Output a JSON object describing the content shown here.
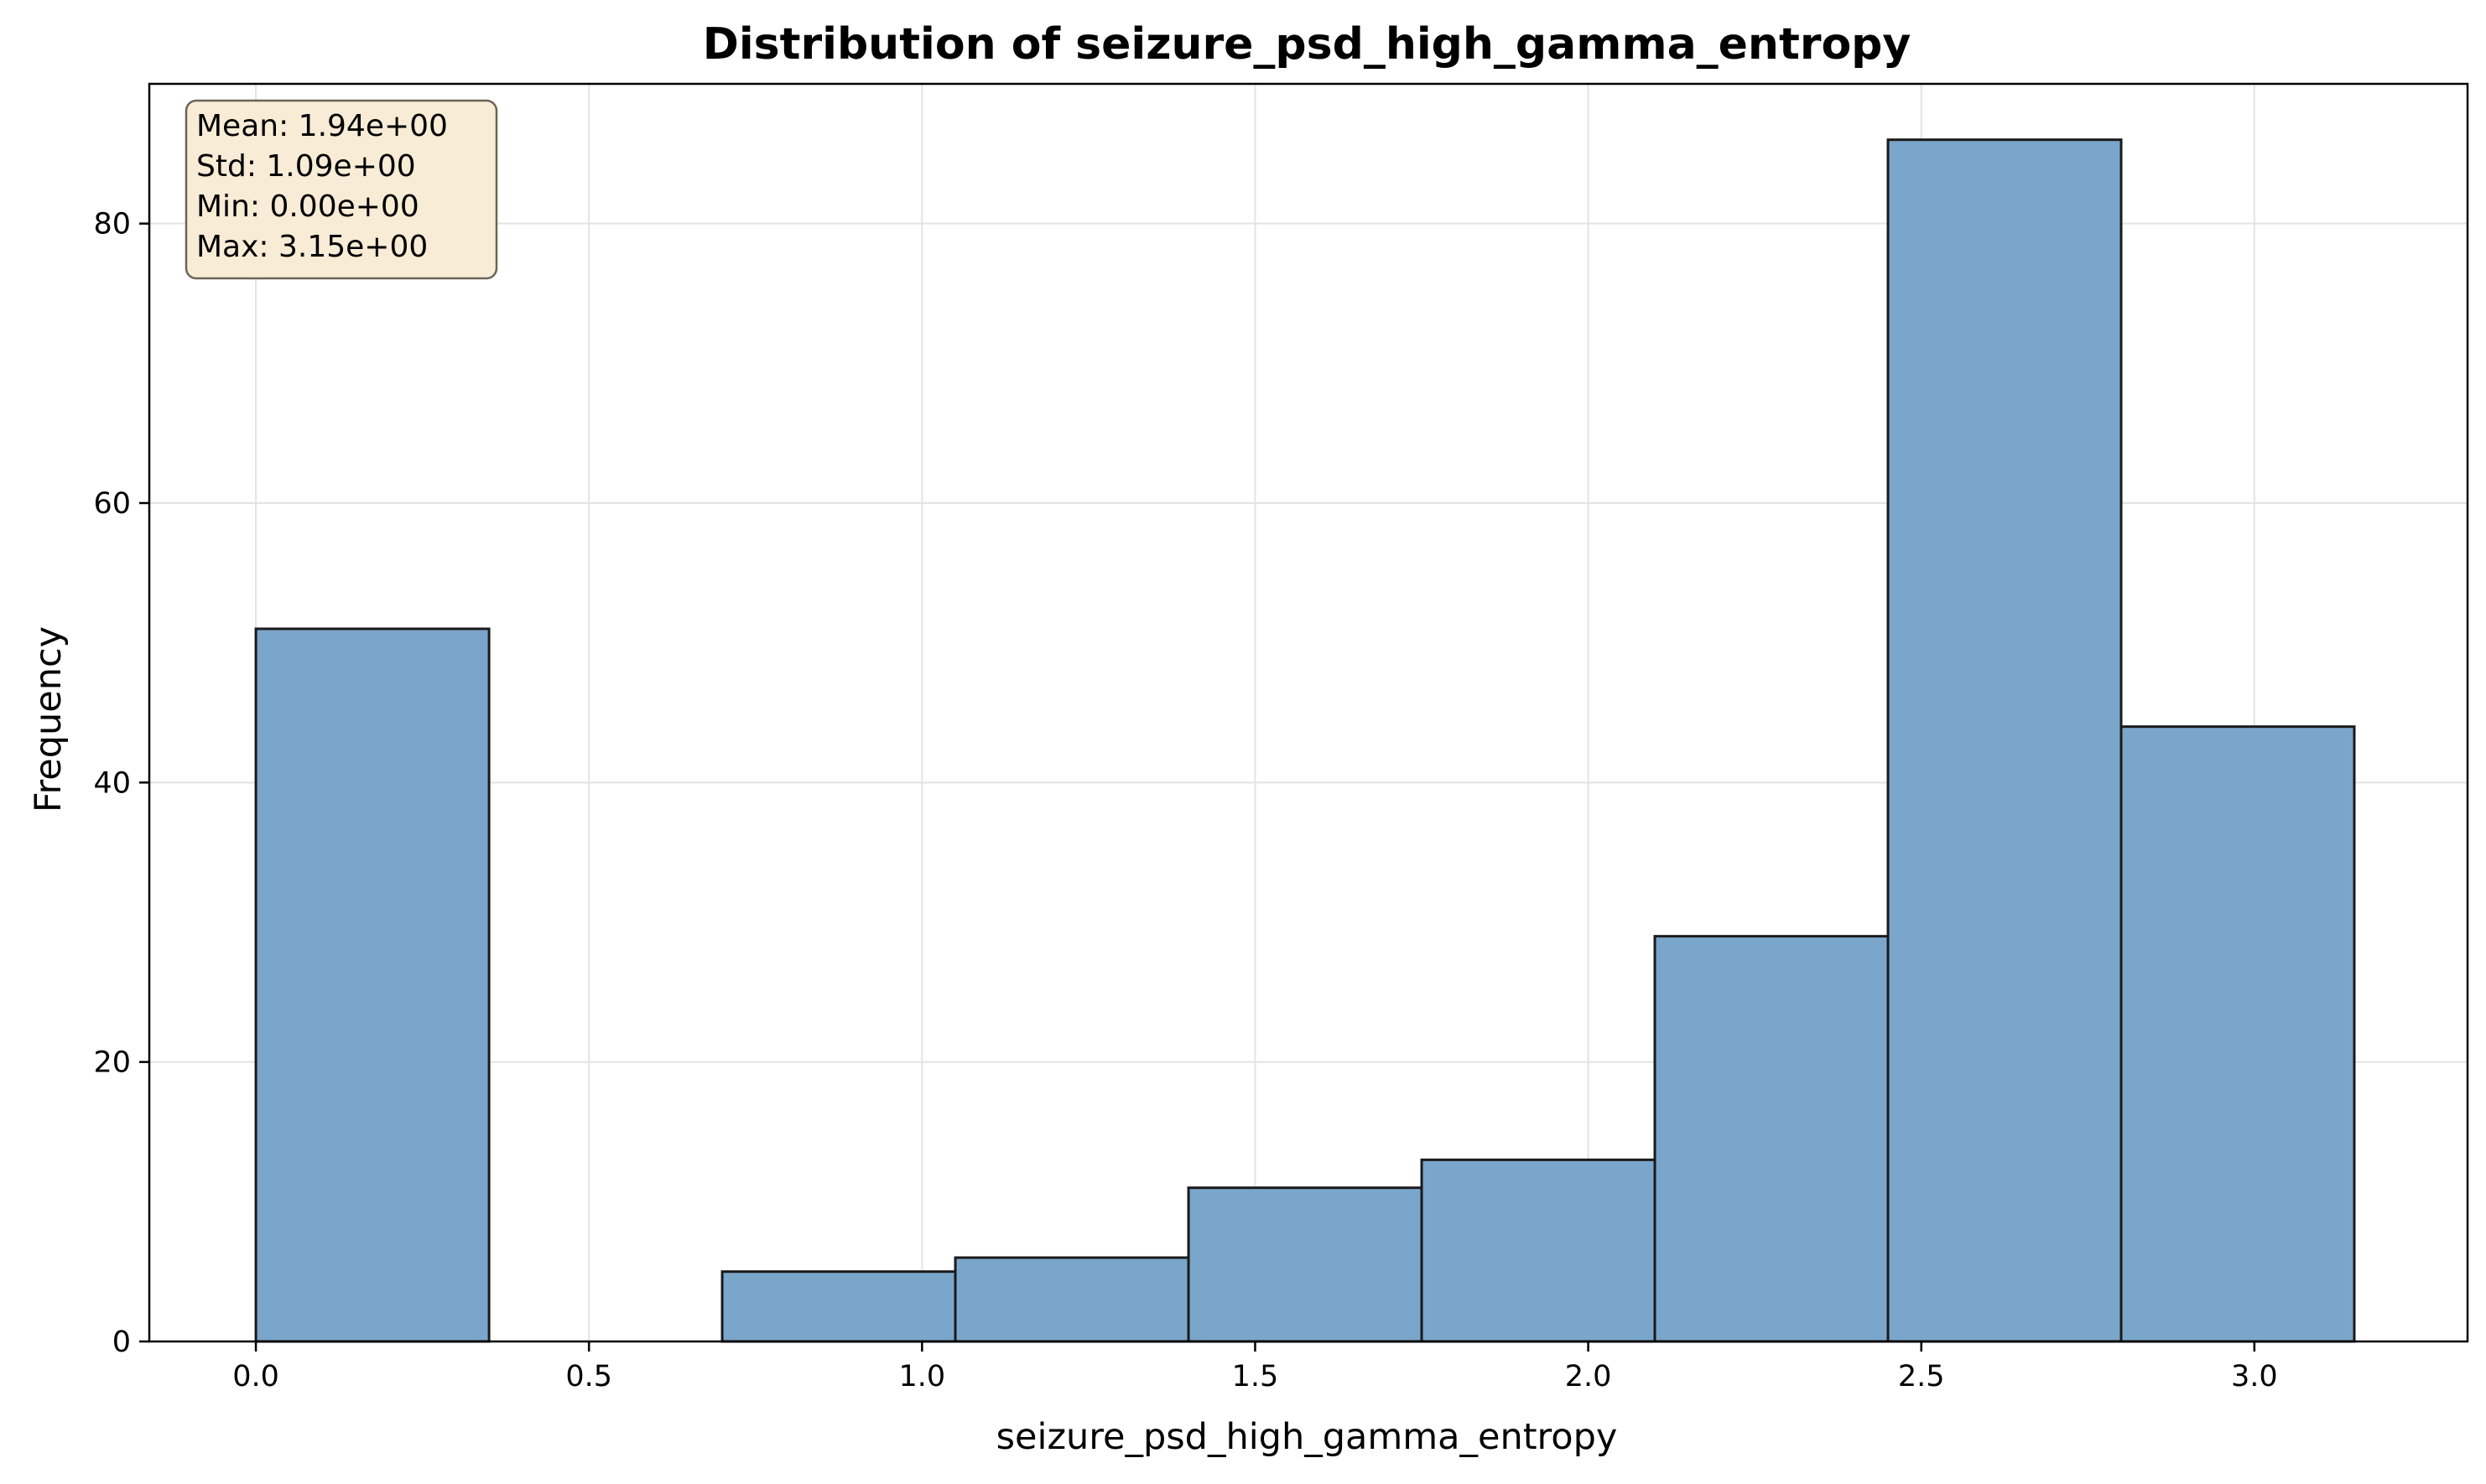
{
  "chart_data": {
    "type": "bar",
    "title": "Distribution of seizure_psd_high_gamma_entropy",
    "xlabel": "seizure_psd_high_gamma_entropy",
    "ylabel": "Frequency",
    "xlim": [
      -0.16,
      3.32
    ],
    "ylim": [
      0,
      90
    ],
    "x_ticks": [
      0.0,
      0.5,
      1.0,
      1.5,
      2.0,
      2.5,
      3.0
    ],
    "x_tick_labels": [
      "0.0",
      "0.5",
      "1.0",
      "1.5",
      "2.0",
      "2.5",
      "3.0"
    ],
    "y_ticks": [
      0,
      20,
      40,
      60,
      80
    ],
    "y_tick_labels": [
      "0",
      "20",
      "40",
      "60",
      "80"
    ],
    "bin_edges": [
      0.0,
      0.35,
      0.7,
      1.05,
      1.4,
      1.75,
      2.1,
      2.45,
      2.8,
      3.15
    ],
    "values": [
      51,
      0,
      5,
      6,
      11,
      13,
      29,
      86,
      44
    ],
    "grid": true,
    "bar_color": "#7ba6cb",
    "edge_color": "#1a1a1a",
    "stats_box": {
      "lines": [
        "Mean: 1.94e+00",
        "Std: 1.09e+00",
        "Min: 0.00e+00",
        "Max: 3.15e+00"
      ],
      "placement": "top-left",
      "background": "#f8ecd6",
      "border": "#6b6558"
    }
  }
}
